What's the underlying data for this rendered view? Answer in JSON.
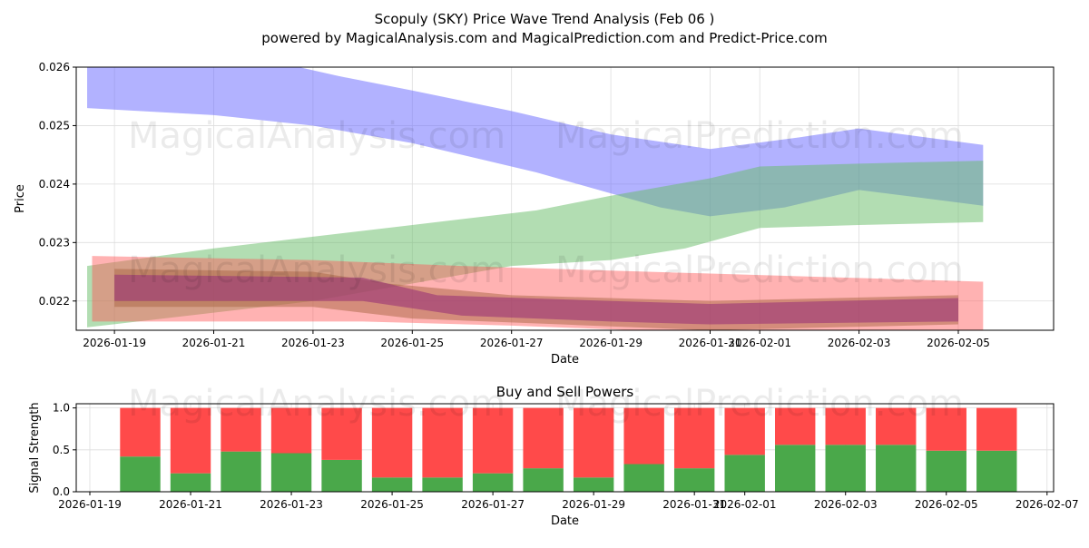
{
  "title": "Scopuly (SKY) Price Wave Trend Analysis (Feb 06 )",
  "subtitle": "powered by MagicalAnalysis.com and MagicalPrediction.com and Predict-Price.com",
  "watermarks": [
    "MagicalAnalysis.com",
    "MagicalPrediction.com"
  ],
  "chart_data": [
    {
      "type": "area",
      "title": "",
      "xlabel": "Date",
      "ylabel": "Price",
      "x_unit": "days since 2026-01-19",
      "xlim": [
        -0.77,
        18.92
      ],
      "ylim": [
        0.0215,
        0.026
      ],
      "yticks": [
        "0.022",
        "0.023",
        "0.024",
        "0.025",
        "0.026"
      ],
      "xticks": [
        {
          "d": 0,
          "label": "2026-01-19"
        },
        {
          "d": 2,
          "label": "2026-01-21"
        },
        {
          "d": 4,
          "label": "2026-01-23"
        },
        {
          "d": 6,
          "label": "2026-01-25"
        },
        {
          "d": 8,
          "label": "2026-01-27"
        },
        {
          "d": 10,
          "label": "2026-01-29"
        },
        {
          "d": 12,
          "label": "2026-01-31"
        },
        {
          "d": 13,
          "label": "2026-02-01"
        },
        {
          "d": 15,
          "label": "2026-02-03"
        },
        {
          "d": 17,
          "label": "2026-02-05"
        }
      ],
      "grid": true,
      "bands": [
        {
          "name": "blue",
          "color": "#6666ff",
          "opacity": 0.5,
          "upper": [
            [
              -0.55,
              0.0261
            ],
            [
              3.2,
              0.0261
            ],
            [
              4.5,
              0.02585
            ],
            [
              6,
              0.0256
            ],
            [
              8,
              0.02525
            ],
            [
              10,
              0.02485
            ],
            [
              12,
              0.0246
            ],
            [
              13.8,
              0.0248
            ],
            [
              15,
              0.02495
            ],
            [
              17.5,
              0.02467
            ]
          ],
          "lower": [
            [
              -0.55,
              0.0253
            ],
            [
              2,
              0.02518
            ],
            [
              4,
              0.025
            ],
            [
              6,
              0.0247
            ],
            [
              8.5,
              0.0242
            ],
            [
              11,
              0.0236
            ],
            [
              12,
              0.02345
            ],
            [
              13.5,
              0.0236
            ],
            [
              15,
              0.0239
            ],
            [
              17.5,
              0.02363
            ]
          ]
        },
        {
          "name": "green",
          "color": "#66bb66",
          "opacity": 0.5,
          "upper": [
            [
              -0.55,
              0.0226
            ],
            [
              2,
              0.0229
            ],
            [
              4,
              0.0231
            ],
            [
              6,
              0.0233
            ],
            [
              8.5,
              0.02355
            ],
            [
              10,
              0.0238
            ],
            [
              12,
              0.0241
            ],
            [
              13,
              0.0243
            ],
            [
              15,
              0.02435
            ],
            [
              17.5,
              0.0244
            ]
          ],
          "lower": [
            [
              -0.55,
              0.02155
            ],
            [
              2,
              0.0218
            ],
            [
              4,
              0.022
            ],
            [
              6,
              0.0223
            ],
            [
              8,
              0.0226
            ],
            [
              10,
              0.0227
            ],
            [
              11.5,
              0.0229
            ],
            [
              13,
              0.02325
            ],
            [
              15,
              0.0233
            ],
            [
              17.5,
              0.02335
            ]
          ]
        },
        {
          "name": "red",
          "color": "#ff5555",
          "opacity": 0.45,
          "upper": [
            [
              -0.45,
              0.02277
            ],
            [
              4,
              0.0227
            ],
            [
              7,
              0.0226
            ],
            [
              10,
              0.02252
            ],
            [
              17.5,
              0.02233
            ]
          ],
          "lower": [
            [
              -0.45,
              0.02165
            ],
            [
              5,
              0.02165
            ],
            [
              8,
              0.02158
            ],
            [
              10.5,
              0.0215
            ],
            [
              17.5,
              0.0215
            ]
          ]
        },
        {
          "name": "brown",
          "color": "#aa6644",
          "opacity": 0.5,
          "upper": [
            [
              0,
              0.02255
            ],
            [
              4,
              0.0225
            ],
            [
              5.5,
              0.0223
            ],
            [
              8,
              0.0221
            ],
            [
              12,
              0.022
            ],
            [
              17,
              0.0221
            ]
          ],
          "lower": [
            [
              0,
              0.0219
            ],
            [
              4,
              0.0219
            ],
            [
              6,
              0.0217
            ],
            [
              9,
              0.0216
            ],
            [
              12,
              0.0215
            ],
            [
              17,
              0.0216
            ]
          ]
        },
        {
          "name": "purple",
          "color": "#993377",
          "opacity": 0.6,
          "upper": [
            [
              0,
              0.02245
            ],
            [
              5,
              0.0224
            ],
            [
              6.5,
              0.0221
            ],
            [
              10,
              0.022
            ],
            [
              12,
              0.02195
            ],
            [
              17,
              0.02205
            ]
          ],
          "lower": [
            [
              0,
              0.022
            ],
            [
              5,
              0.022
            ],
            [
              7,
              0.02175
            ],
            [
              10,
              0.02165
            ],
            [
              12,
              0.0216
            ],
            [
              17,
              0.02165
            ]
          ]
        }
      ]
    },
    {
      "type": "bar",
      "title": "Buy and Sell Powers",
      "xlabel": "Date",
      "ylabel": "Signal Strength",
      "x_unit": "days since 2026-01-19",
      "xlim": [
        -0.27,
        19.13
      ],
      "ylim": [
        0,
        1.05
      ],
      "yticks": [
        "0.0",
        "0.5",
        "1.0"
      ],
      "xticks": [
        {
          "d": 0,
          "label": "2026-01-19"
        },
        {
          "d": 2,
          "label": "2026-01-21"
        },
        {
          "d": 4,
          "label": "2026-01-23"
        },
        {
          "d": 6,
          "label": "2026-01-25"
        },
        {
          "d": 8,
          "label": "2026-01-27"
        },
        {
          "d": 10,
          "label": "2026-01-29"
        },
        {
          "d": 12,
          "label": "2026-01-31"
        },
        {
          "d": 13,
          "label": "2026-02-01"
        },
        {
          "d": 15,
          "label": "2026-02-03"
        },
        {
          "d": 17,
          "label": "2026-02-05"
        },
        {
          "d": 19,
          "label": "2026-02-07"
        }
      ],
      "categories": [
        "2026-01-20",
        "2026-01-21",
        "2026-01-22",
        "2026-01-23",
        "2026-01-24",
        "2026-01-25",
        "2026-01-26",
        "2026-01-27",
        "2026-01-28",
        "2026-01-29",
        "2026-01-30",
        "2026-01-31",
        "2026-02-01",
        "2026-02-02",
        "2026-02-03",
        "2026-02-04",
        "2026-02-05",
        "2026-02-06"
      ],
      "series": [
        {
          "name": "Buy",
          "color": "#4aa84a",
          "values": [
            0.42,
            0.22,
            0.48,
            0.46,
            0.38,
            0.17,
            0.17,
            0.22,
            0.28,
            0.17,
            0.33,
            0.28,
            0.44,
            0.56,
            0.56,
            0.56,
            0.49,
            0.49
          ]
        },
        {
          "name": "Sell",
          "color": "#ff4a4a",
          "values": [
            0.58,
            0.78,
            0.52,
            0.54,
            0.62,
            0.83,
            0.83,
            0.78,
            0.72,
            0.83,
            0.67,
            0.72,
            0.56,
            0.44,
            0.44,
            0.44,
            0.51,
            0.51
          ]
        }
      ]
    }
  ]
}
